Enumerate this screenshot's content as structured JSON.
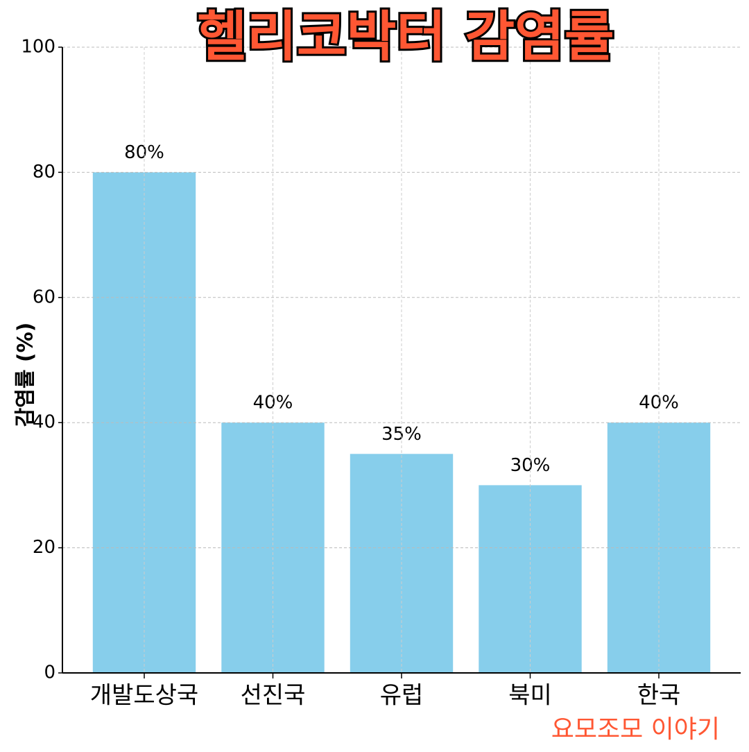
{
  "chart_data": {
    "type": "bar",
    "title": "헬리코박터 감염률",
    "y_label": "감염률 (%)",
    "categories": [
      "개발도상국",
      "선진국",
      "유럽",
      "북미",
      "한국"
    ],
    "values": [
      80,
      40,
      35,
      30,
      40
    ],
    "value_labels": [
      "80%",
      "40%",
      "35%",
      "30%",
      "40%"
    ],
    "color": "#87CEEB",
    "ylim": [
      0,
      100
    ],
    "yticks": [
      0,
      20,
      40,
      60,
      80,
      100
    ],
    "grid": true,
    "watermark": "요모조모 이야기"
  }
}
